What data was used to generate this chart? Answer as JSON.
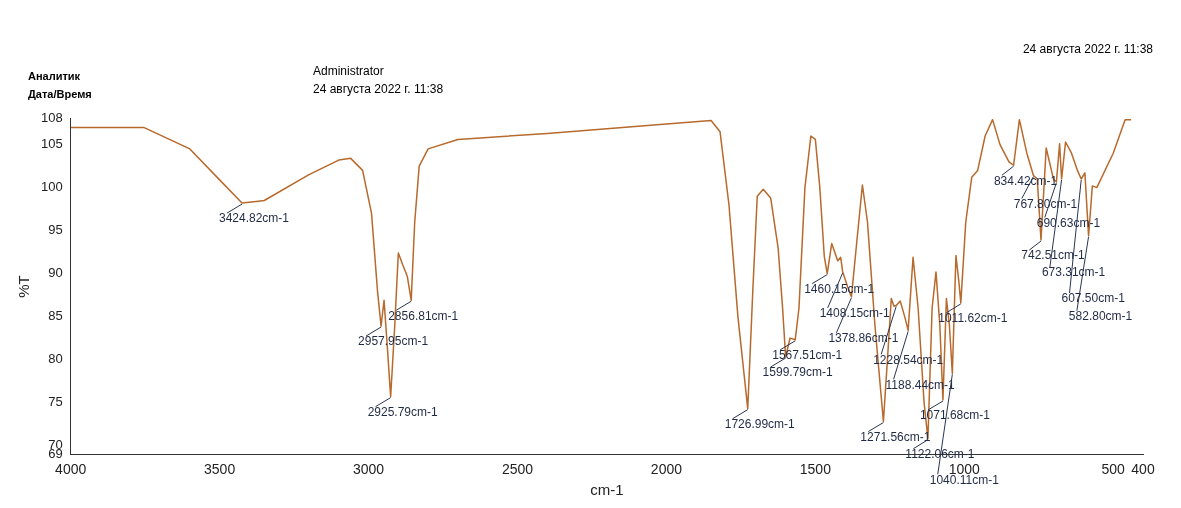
{
  "chart_data": {
    "type": "line",
    "xlabel": "cm-1",
    "ylabel": "%T",
    "xlim": [
      4000,
      400
    ],
    "xticks": [
      4000,
      3500,
      3000,
      2500,
      2000,
      1500,
      1000,
      500,
      400
    ],
    "ylim": [
      69,
      108
    ],
    "yticks": [
      69,
      70,
      75,
      80,
      85,
      90,
      95,
      100,
      105,
      108
    ],
    "grid": false,
    "legend": false,
    "annotations": [
      "Аналитик",
      "Дата/Время",
      "Administrator",
      "24 августа 2022 г. 11:38",
      "24 августа 2022 г. 11:38",
      {
        "text": "3424.82cm-1",
        "x": 3424.82,
        "y": 98.2
      },
      {
        "text": "2957.95cm-1",
        "x": 2957.95,
        "y": 83.9
      },
      {
        "text": "2925.79cm-1",
        "x": 2925.79,
        "y": 75.7
      },
      {
        "text": "2856.81cm-1",
        "x": 2856.81,
        "y": 86.9
      },
      {
        "text": "1726.99cm-1",
        "x": 1726.99,
        "y": 74.3
      },
      {
        "text": "1599.79cm-1",
        "x": 1599.79,
        "y": 80.3
      },
      {
        "text": "1567.51cm-1",
        "x": 1567.51,
        "y": 82.3
      },
      {
        "text": "1460.15cm-1",
        "x": 1460.15,
        "y": 90
      },
      {
        "text": "1408.15cm-1",
        "x": 1408.15,
        "y": 90.2
      },
      {
        "text": "1378.86cm-1",
        "x": 1378.86,
        "y": 87.3
      },
      {
        "text": "1271.56cm-1",
        "x": 1271.56,
        "y": 72.8
      },
      {
        "text": "1228.54cm-1",
        "x": 1228.54,
        "y": 86.3
      },
      {
        "text": "1188.44cm-1",
        "x": 1188.44,
        "y": 83.4
      },
      {
        "text": "1122.06cm-1",
        "x": 1122.06,
        "y": 70.8
      },
      {
        "text": "1071.68cm-1",
        "x": 1071.68,
        "y": 75.3
      },
      {
        "text": "1040.11cm-1",
        "x": 1040.11,
        "y": 78.4
      },
      {
        "text": "1011.62cm-1",
        "x": 1011.62,
        "y": 86.6
      },
      {
        "text": "834.42cm-1",
        "x": 834.42,
        "y": 102.6
      },
      {
        "text": "767.80cm-1",
        "x": 767.8,
        "y": 101.4
      },
      {
        "text": "742.51cm-1",
        "x": 742.51,
        "y": 93.9
      },
      {
        "text": "690.63cm-1",
        "x": 690.63,
        "y": 100.7
      },
      {
        "text": "673.31cm-1",
        "x": 673.31,
        "y": 101
      },
      {
        "text": "607.50cm-1",
        "x": 607.5,
        "y": 101
      },
      {
        "text": "582.80cm-1",
        "x": 582.8,
        "y": 94.4
      }
    ],
    "series": [
      {
        "color": "#b8692c",
        "x": [
          4000,
          3755,
          3600,
          3500,
          3424.82,
          3350,
          3200,
          3100,
          3060,
          3020,
          2990,
          2970,
          2957.95,
          2948,
          2938,
          2925.79,
          2912,
          2900,
          2885,
          2870,
          2856.81,
          2845,
          2830,
          2800,
          2700,
          2400,
          2000,
          1850,
          1820,
          1790,
          1760,
          1726.99,
          1710,
          1695,
          1675,
          1650,
          1625,
          1610,
          1599.79,
          1585,
          1567.51,
          1555,
          1535,
          1515,
          1500,
          1485,
          1470,
          1460.15,
          1445,
          1425,
          1415,
          1408.15,
          1392,
          1378.86,
          1360,
          1342,
          1325,
          1300,
          1271.56,
          1258,
          1245,
          1236,
          1228.54,
          1215,
          1200,
          1188.44,
          1172,
          1155,
          1135,
          1122.06,
          1108,
          1095,
          1082,
          1071.68,
          1060,
          1050,
          1040.11,
          1028,
          1018,
          1011.62,
          995,
          975,
          955,
          930,
          905,
          880,
          850,
          834.42,
          815,
          790,
          767.8,
          755,
          742.51,
          725,
          700,
          690.63,
          680,
          673.31,
          660,
          640,
          620,
          607.5,
          595,
          582.8,
          570,
          555,
          500,
          460,
          440
        ],
        "values": [
          107,
          107,
          104.5,
          100.9,
          98.2,
          98.5,
          101.5,
          103.2,
          103.4,
          102,
          97,
          88,
          83.9,
          86.9,
          82,
          75.7,
          84,
          92.4,
          91,
          89.7,
          86.9,
          96,
          102.5,
          104.5,
          105.6,
          106.3,
          107.4,
          107.8,
          106.5,
          98,
          85,
          74.3,
          88,
          99,
          99.8,
          98.8,
          93,
          86,
          80.3,
          82.5,
          82.3,
          86,
          100,
          106,
          105.6,
          100,
          92,
          90,
          93.5,
          91.5,
          91.9,
          90.2,
          88.5,
          87.3,
          94,
          100.3,
          96,
          84,
          72.8,
          80,
          87.1,
          86.2,
          86.3,
          86.8,
          85,
          83.4,
          91.9,
          86,
          75,
          70.8,
          86,
          90.2,
          84,
          75.3,
          87.1,
          84,
          78.4,
          92.1,
          89,
          86.6,
          96,
          101.2,
          102,
          106,
          107.9,
          105,
          103,
          102.6,
          107.9,
          104,
          101.4,
          101,
          93.9,
          104.6,
          100.9,
          100.7,
          105.1,
          101,
          105.3,
          104,
          102,
          101,
          101.7,
          94.4,
          100.2,
          100,
          104,
          107.9,
          107.9
        ]
      }
    ]
  }
}
